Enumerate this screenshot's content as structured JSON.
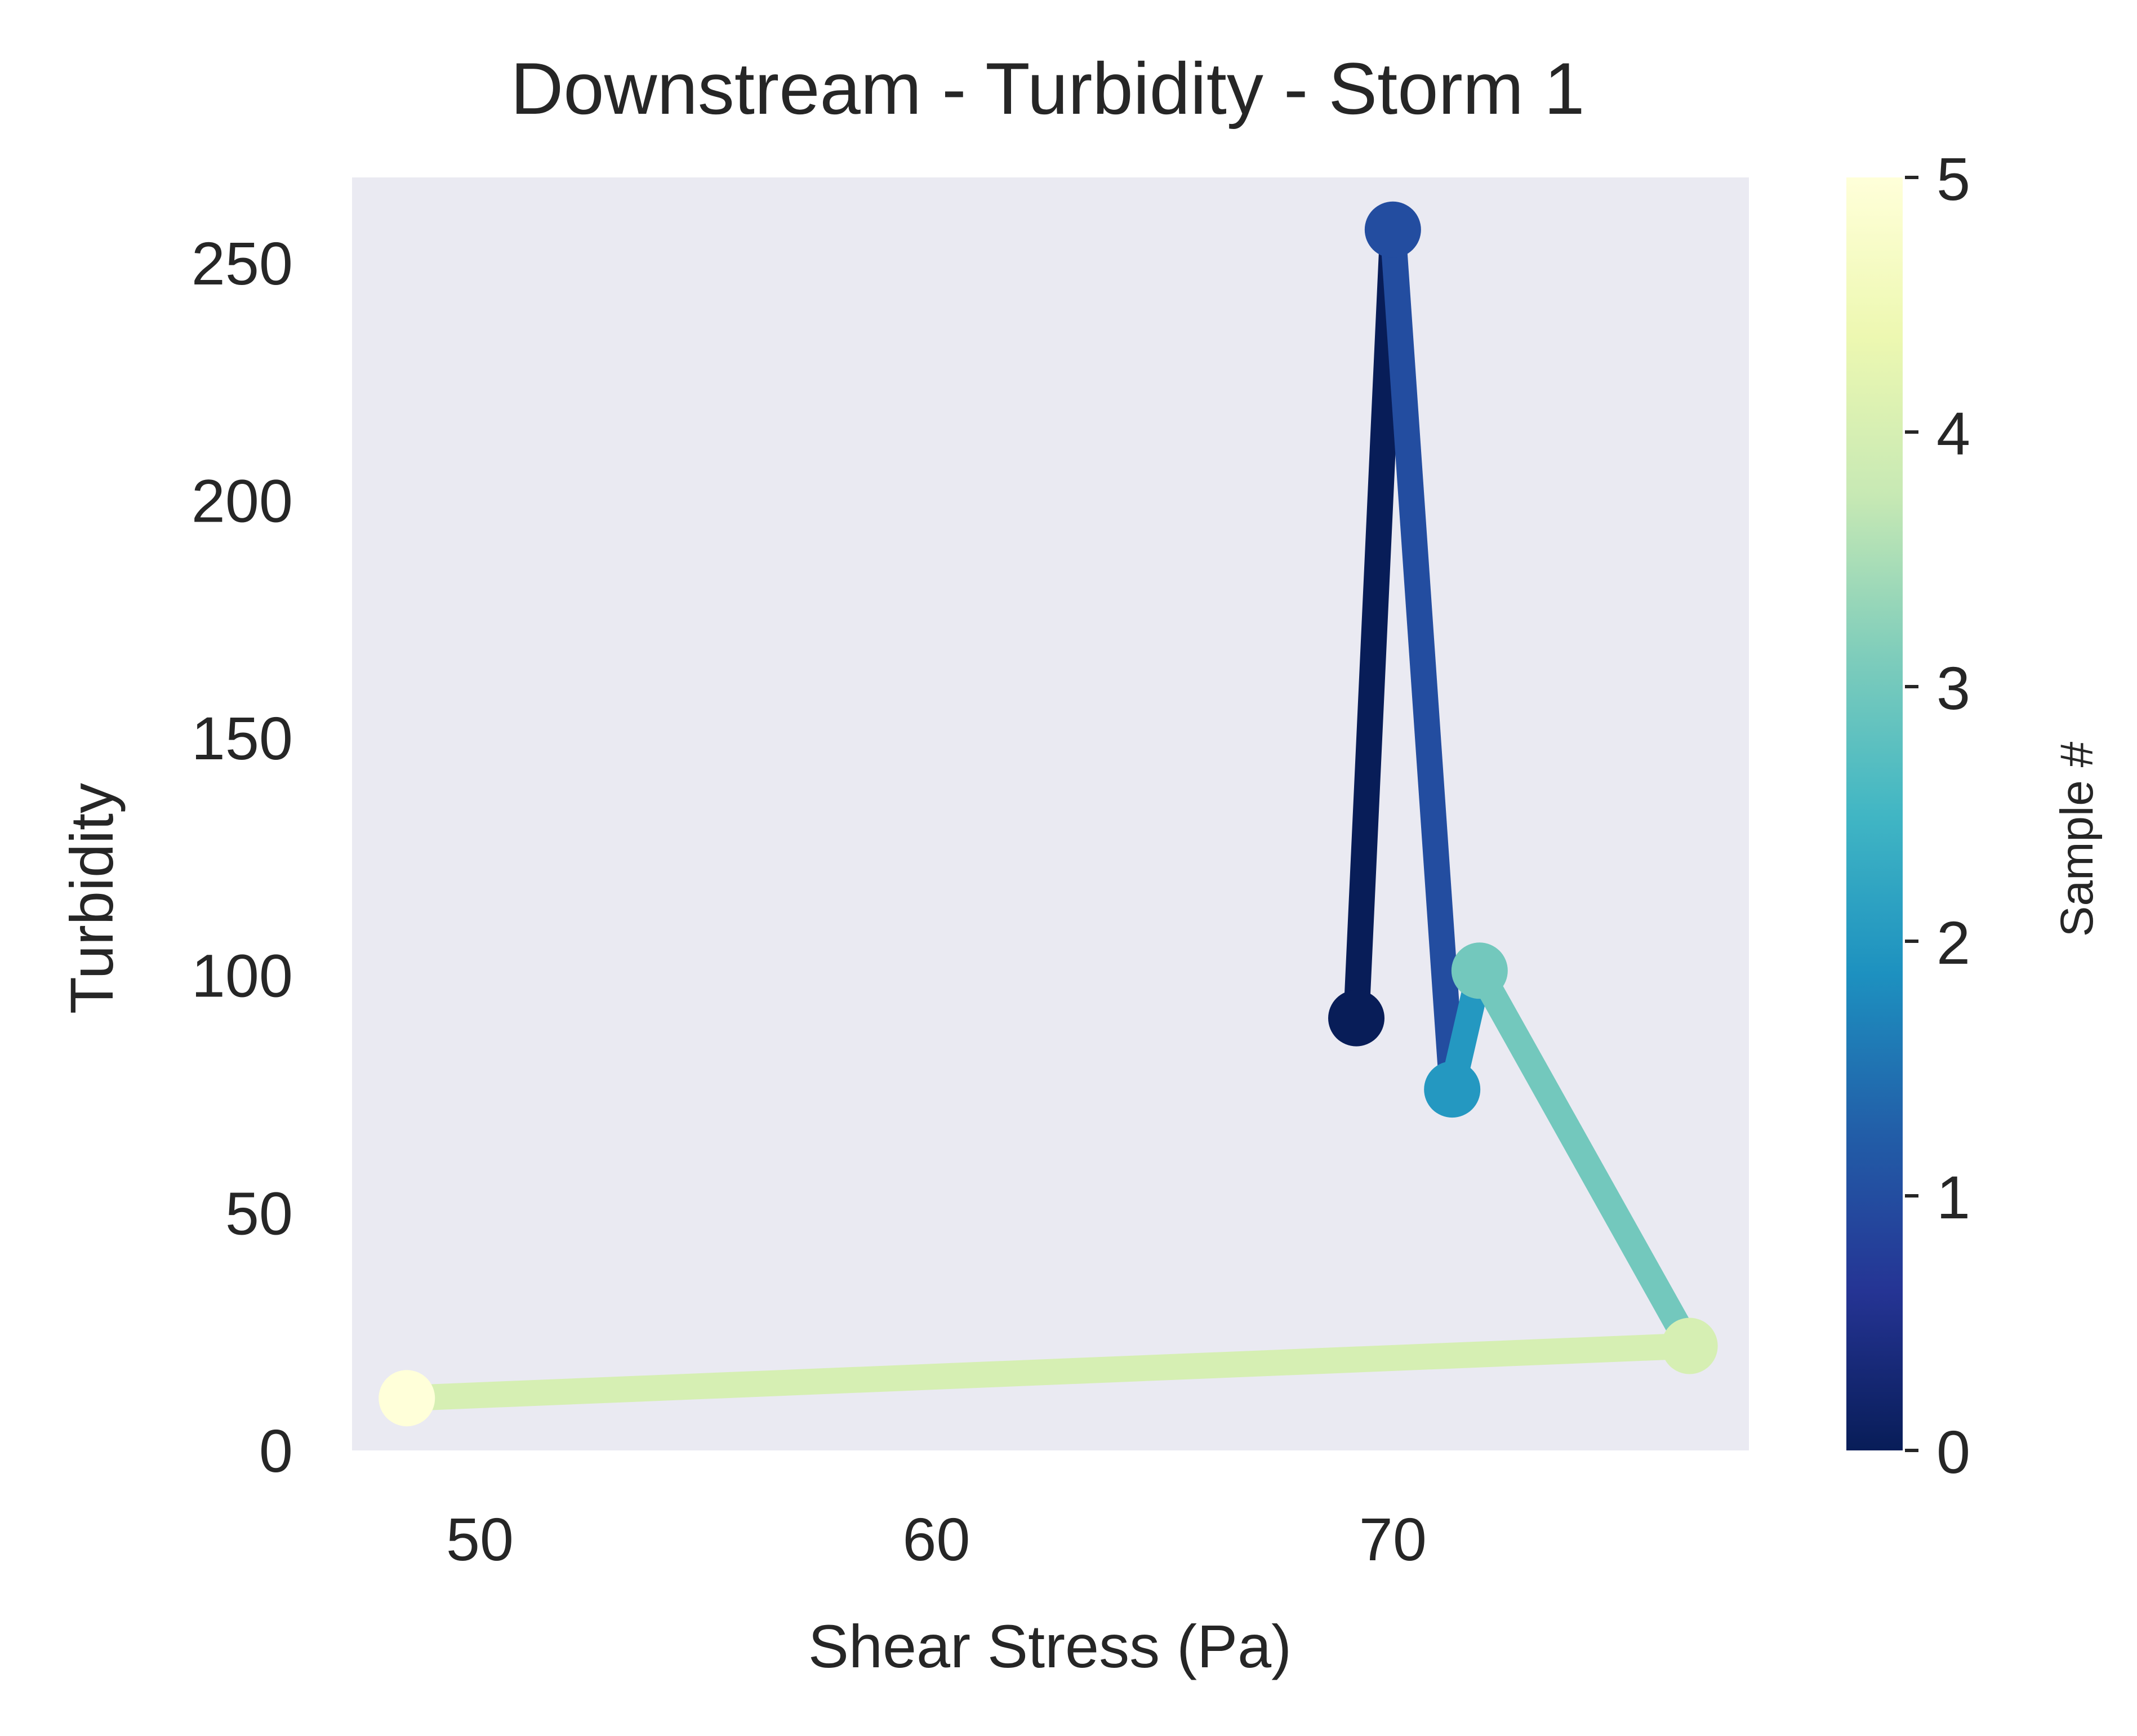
{
  "chart_data": {
    "type": "line",
    "title": "Downstream - Turbidity - Storm 1",
    "xlabel": "Shear Stress (Pa)",
    "ylabel": "Turbidity",
    "xlim": [
      47.2,
      77.8
    ],
    "ylim": [
      0,
      268
    ],
    "xticks": [
      50,
      60,
      70
    ],
    "yticks": [
      0,
      50,
      100,
      150,
      200,
      250
    ],
    "grid": false,
    "background": "#eaeaf2",
    "colormap": "YlGnBu_r",
    "colorbar": {
      "label": "Sample #",
      "range": [
        0,
        5
      ],
      "ticks": [
        0,
        1,
        2,
        3,
        4,
        5
      ],
      "stops": [
        "#081d58",
        "#253494",
        "#225ea8",
        "#1d91c0",
        "#41b6c4",
        "#7fcdbb",
        "#c7e9b4",
        "#edf8b1",
        "#ffffd9"
      ]
    },
    "points": [
      {
        "sample": 0,
        "x": 69.2,
        "y": 91,
        "color": "#081d58"
      },
      {
        "sample": 1,
        "x": 70.0,
        "y": 257,
        "color": "#234da0"
      },
      {
        "sample": 2,
        "x": 71.3,
        "y": 76,
        "color": "#2498c1"
      },
      {
        "sample": 3,
        "x": 71.9,
        "y": 101,
        "color": "#73c8bd"
      },
      {
        "sample": 4,
        "x": 76.5,
        "y": 22,
        "color": "#d6efb3"
      },
      {
        "sample": 5,
        "x": 48.4,
        "y": 11,
        "color": "#ffffd9"
      }
    ]
  }
}
